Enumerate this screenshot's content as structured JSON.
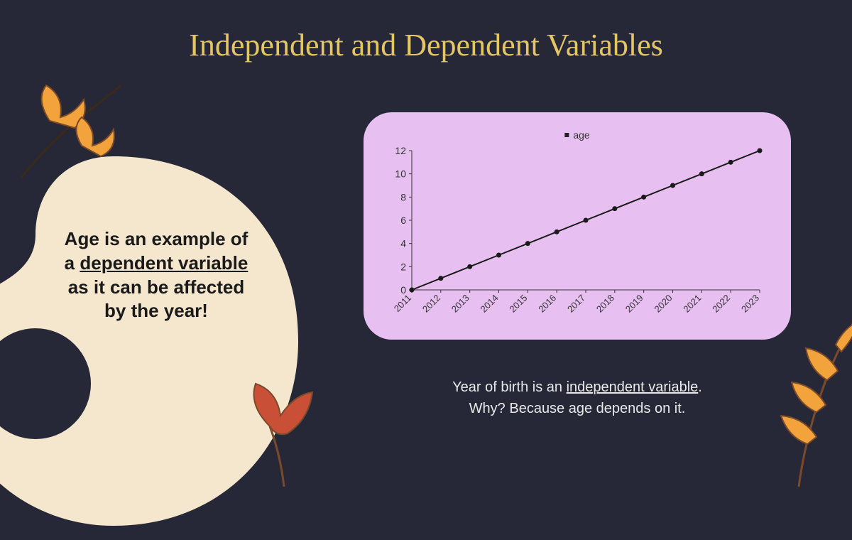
{
  "title": "Independent and Dependent Variables",
  "body_text": {
    "line1": "Age is an example of",
    "line2_pre": "a ",
    "line2_u": "dependent variable",
    "line3": "as it can be affected",
    "line4": "by the year!"
  },
  "caption": {
    "line1_pre": "Year of birth is an ",
    "line1_u": "independent variable",
    "line1_post": ".",
    "line2": "Why? Because age depends on it."
  },
  "chart": {
    "type": "line",
    "legend_label": "age",
    "x_labels": [
      "2011",
      "2012",
      "2013",
      "2014",
      "2015",
      "2016",
      "2017",
      "2018",
      "2019",
      "2020",
      "2021",
      "2022",
      "2023"
    ],
    "y_ticks": [
      0,
      2,
      4,
      6,
      8,
      10,
      12
    ],
    "values": [
      0,
      1,
      2,
      3,
      4,
      5,
      6,
      7,
      8,
      9,
      10,
      11,
      12
    ],
    "ylim": [
      0,
      12
    ],
    "line_color": "#1a1a1a",
    "marker_color": "#1a1a1a",
    "marker_radius": 3.5,
    "line_width": 2,
    "tick_font_size": 14,
    "xlabel_font_size": 13,
    "grid": false,
    "panel_bg": "#e7bff0",
    "axis_label_color": "#333333"
  },
  "colors": {
    "background": "#262837",
    "title": "#e4c665",
    "blob": "#f5e6ce",
    "chart_panel": "#e7bff0",
    "caption": "#e8e8e8",
    "body_text": "#1a1a1a",
    "accent_orange": "#f2a33c",
    "accent_red": "#c94f36",
    "accent_brown": "#7a4a2a"
  },
  "typography": {
    "title_fontsize": 44,
    "body_fontsize": 26,
    "caption_fontsize": 20
  }
}
